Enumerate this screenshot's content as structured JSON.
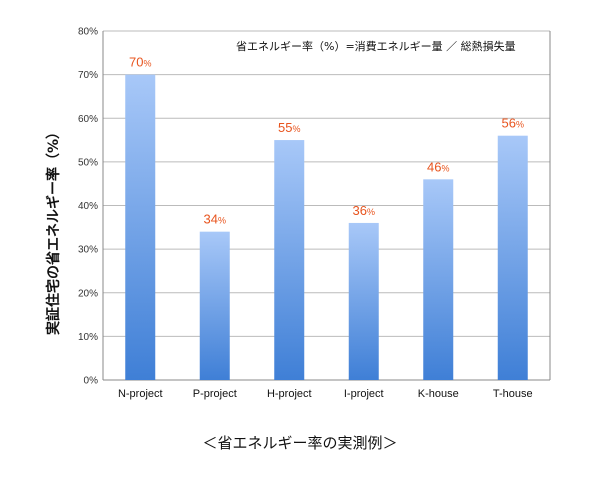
{
  "chart_data": {
    "type": "bar",
    "categories": [
      "N-project",
      "P-project",
      "H-project",
      "I-project",
      "K-house",
      "T-house"
    ],
    "values": [
      70,
      34,
      55,
      36,
      46,
      56
    ],
    "value_unit": "%",
    "ylabel": "実証住宅の省エネルギー率（%）",
    "ylim": [
      0,
      80
    ],
    "yticks": [
      "0%",
      "10%",
      "20%",
      "30%",
      "40%",
      "50%",
      "60%",
      "70%",
      "80%"
    ],
    "grid": true,
    "annotation": "省エネルギー率（%）=消費エネルギー量 ／ 総熱損失量",
    "caption": "＜省エネルギー率の実測例＞",
    "colors": {
      "bar_top": "#a8c8f8",
      "bar_bottom": "#3f7fd6",
      "label": "#e8541e",
      "grid": "#bbbbbb"
    }
  }
}
